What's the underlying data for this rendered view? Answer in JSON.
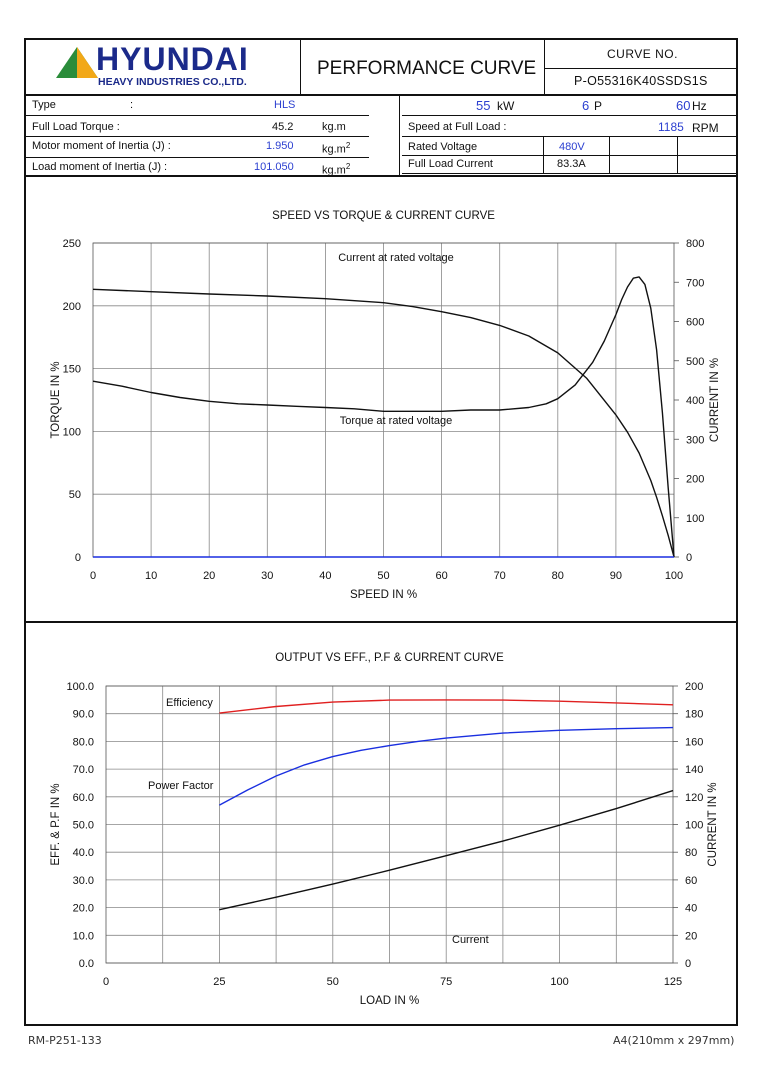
{
  "header": {
    "company_name": "HYUNDAI",
    "company_subtitle": "HEAVY INDUSTRIES CO.,LTD.",
    "document_title": "PERFORMANCE CURVE",
    "curve_no_label": "CURVE NO.",
    "curve_no_value": "P-O55316K40SSDS1S"
  },
  "specs_left": [
    {
      "label": "Type",
      "colon": ":",
      "value": "HLS",
      "unit": ""
    },
    {
      "label": "Full Load Torque :",
      "colon": "",
      "value": "45.2",
      "unit": "kg.m"
    },
    {
      "label": "Motor moment of Inertia (J) :",
      "colon": "",
      "value": "1.950",
      "unit": "kg.m",
      "unit_sup": "2"
    },
    {
      "label": "Load moment of Inertia (J) :",
      "colon": "",
      "value": "101.050",
      "unit": "kg.m",
      "unit_sup": "2"
    }
  ],
  "specs_right": {
    "power_value": "55",
    "power_unit": "kW",
    "poles_value": "6",
    "poles_unit": "P",
    "freq_value": "60",
    "freq_unit": "Hz",
    "speed_label": "Speed at Full Load :",
    "speed_value": "1185",
    "speed_unit": "RPM",
    "rated_voltage_label": "Rated Voltage",
    "rated_voltage_value": "480V",
    "full_load_current_label": "Full Load Current",
    "full_load_current_value": "83.3A"
  },
  "footer": {
    "doc_code": "RM-P251-133",
    "paper_size": "A4(210mm x 297mm)"
  },
  "colors": {
    "efficiency": "#e02020",
    "power_factor": "#1a2fe0",
    "current": "#111111",
    "baseline": "#1a2fe0",
    "grid": "#888888"
  },
  "chart_data": [
    {
      "type": "line",
      "title": "SPEED VS TORQUE & CURRENT CURVE",
      "xlabel": "SPEED IN %",
      "ylabel": "TORQUE IN %",
      "y2label": "CURRENT IN %",
      "xlim": [
        0,
        100
      ],
      "ylim": [
        0,
        250
      ],
      "y2lim": [
        0,
        800
      ],
      "xticks": [
        0,
        10,
        20,
        30,
        40,
        50,
        60,
        70,
        80,
        90,
        100
      ],
      "yticks": [
        0,
        50,
        100,
        150,
        200,
        250
      ],
      "y2ticks": [
        0,
        100,
        200,
        300,
        400,
        500,
        600,
        700,
        800
      ],
      "grid": true,
      "series": [
        {
          "name": "Torque at rated voltage",
          "axis": "left",
          "x": [
            0,
            5,
            10,
            15,
            20,
            25,
            30,
            35,
            40,
            45,
            50,
            55,
            60,
            65,
            70,
            75,
            78,
            80,
            83,
            86,
            88,
            90,
            91,
            92,
            93,
            94,
            95,
            96,
            97,
            98,
            99,
            100
          ],
          "y": [
            140,
            136,
            131,
            127,
            124,
            122,
            121,
            120,
            119,
            118,
            116,
            116,
            116,
            117,
            117,
            119,
            122,
            126,
            137,
            155,
            172,
            193,
            205,
            215,
            222,
            223,
            217,
            198,
            165,
            115,
            55,
            0
          ]
        },
        {
          "name": "Current at rated voltage",
          "axis": "right",
          "x": [
            0,
            10,
            20,
            30,
            40,
            50,
            55,
            60,
            65,
            70,
            75,
            80,
            85,
            90,
            92,
            94,
            96,
            97,
            98,
            99,
            100
          ],
          "y": [
            682,
            676,
            670,
            665,
            658,
            648,
            638,
            625,
            610,
            590,
            563,
            520,
            455,
            362,
            318,
            265,
            195,
            152,
            105,
            55,
            0
          ]
        }
      ],
      "annotations": [
        "Current at rated voltage",
        "Torque at rated voltage"
      ]
    },
    {
      "type": "line",
      "title": "OUTPUT VS EFF., P.F & CURRENT CURVE",
      "xlabel": "LOAD IN %",
      "ylabel": "EFF. & P.F IN %",
      "y2label": "CURRENT IN %",
      "xlim": [
        0,
        125
      ],
      "ylim": [
        0,
        100
      ],
      "y2lim": [
        0,
        200
      ],
      "xticks": [
        0,
        25,
        50,
        75,
        100,
        125
      ],
      "yticks": [
        "0.0",
        "10.0",
        "20.0",
        "30.0",
        "40.0",
        "50.0",
        "60.0",
        "70.0",
        "80.0",
        "90.0",
        "100.0"
      ],
      "y2ticks": [
        0,
        20,
        40,
        60,
        80,
        100,
        120,
        140,
        160,
        180,
        200
      ],
      "grid": true,
      "series": [
        {
          "name": "Efficiency",
          "axis": "left",
          "x": [
            25,
            37.5,
            50,
            62.5,
            75,
            87.5,
            100,
            112.5,
            125
          ],
          "y": [
            90.2,
            92.6,
            94.2,
            94.9,
            95.0,
            94.9,
            94.5,
            93.9,
            93.2
          ]
        },
        {
          "name": "Power Factor",
          "axis": "left",
          "x": [
            25,
            31.25,
            37.5,
            43.75,
            50,
            56.25,
            62.5,
            68.75,
            75,
            87.5,
            100,
            112.5,
            125
          ],
          "y": [
            57.0,
            62.5,
            67.5,
            71.5,
            74.5,
            76.8,
            78.5,
            80.0,
            81.2,
            83.0,
            84.0,
            84.6,
            85.0
          ]
        },
        {
          "name": "Current",
          "axis": "right",
          "x": [
            25,
            37.5,
            50,
            62.5,
            75,
            87.5,
            100,
            112.5,
            125
          ],
          "y": [
            38.5,
            47.5,
            57.0,
            67.0,
            77.5,
            88.0,
            99.5,
            111.5,
            124.5
          ]
        }
      ],
      "annotations": [
        "Efficiency",
        "Power Factor",
        "Current"
      ]
    }
  ]
}
